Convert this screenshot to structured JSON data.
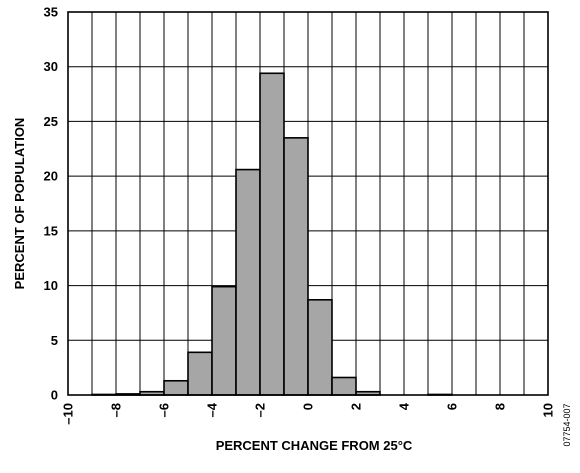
{
  "chart_data": {
    "type": "bar",
    "title": "",
    "xlabel": "PERCENT CHANGE FROM 25°C",
    "ylabel": "PERCENT OF POPULATION",
    "xlim": [
      -10,
      10
    ],
    "ylim": [
      0,
      35
    ],
    "x_ticks": [
      -10,
      -8,
      -6,
      -4,
      -2,
      0,
      2,
      4,
      6,
      8,
      10
    ],
    "x_tick_labels": [
      "–10",
      "–8",
      "–6",
      "–4",
      "–2",
      "0",
      "2",
      "4",
      "6",
      "8",
      "10"
    ],
    "y_ticks": [
      0,
      5,
      10,
      15,
      20,
      25,
      30,
      35
    ],
    "y_tick_labels": [
      "0",
      "5",
      "10",
      "15",
      "20",
      "25",
      "30",
      "35"
    ],
    "grid": true,
    "bin_width": 1,
    "bar_color": "#a6a6a6",
    "bins": [
      {
        "start": -9,
        "end": -8,
        "value": 0.05
      },
      {
        "start": -8,
        "end": -7,
        "value": 0.1
      },
      {
        "start": -7,
        "end": -6,
        "value": 0.3
      },
      {
        "start": -6,
        "end": -5,
        "value": 1.3
      },
      {
        "start": -5,
        "end": -4,
        "value": 3.9
      },
      {
        "start": -4,
        "end": -3,
        "value": 9.9
      },
      {
        "start": -3,
        "end": -2,
        "value": 20.6
      },
      {
        "start": -2,
        "end": -1,
        "value": 29.4
      },
      {
        "start": -1,
        "end": 0,
        "value": 23.5
      },
      {
        "start": 0,
        "end": 1,
        "value": 8.7
      },
      {
        "start": 1,
        "end": 2,
        "value": 1.6
      },
      {
        "start": 2,
        "end": 3,
        "value": 0.3
      },
      {
        "start": 5,
        "end": 6,
        "value": 0.05
      }
    ],
    "figure_id": "07754-007"
  }
}
